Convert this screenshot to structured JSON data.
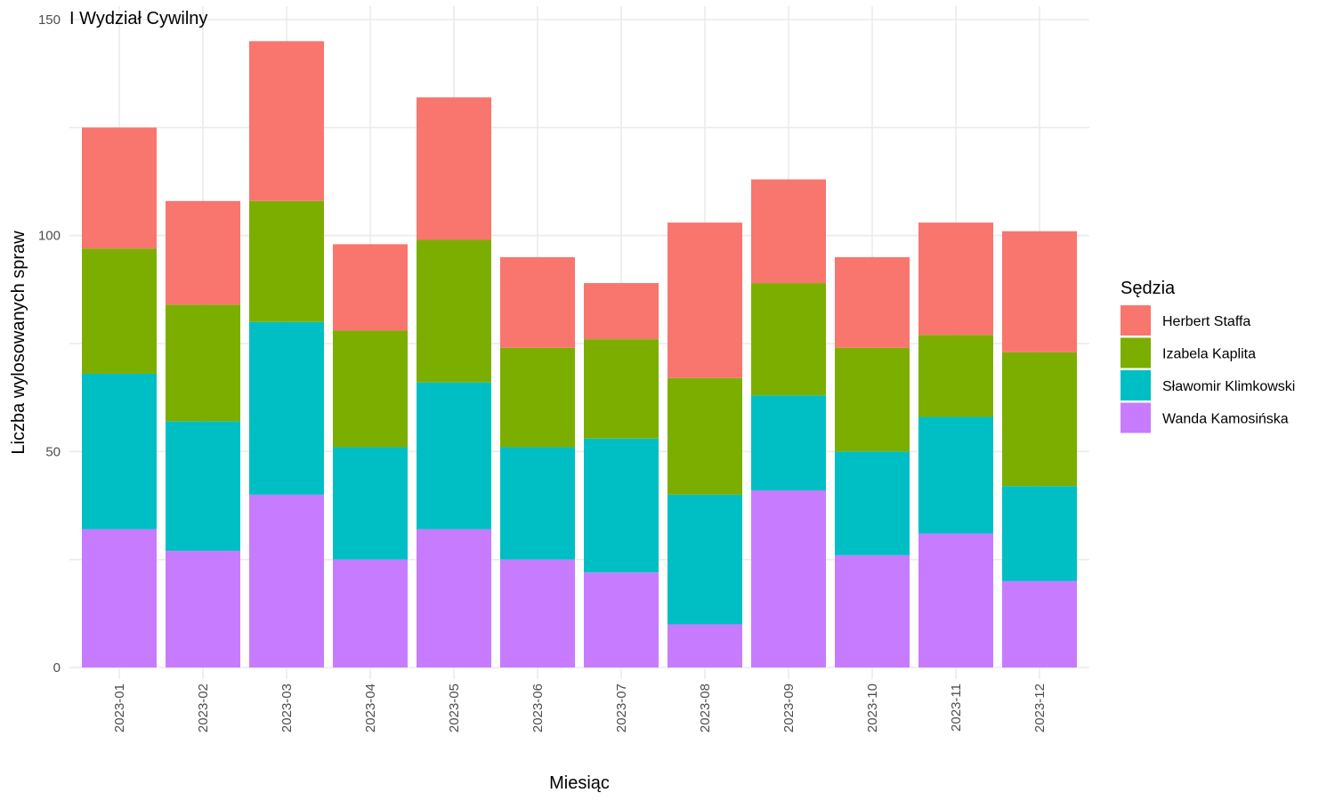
{
  "chart_data": {
    "type": "bar",
    "stacked": true,
    "title": "I Wydział Cywilny",
    "xlabel": "Miesiąc",
    "ylabel": "Liczba wylosowanych spraw",
    "ylim": [
      0,
      150
    ],
    "yticks": [
      0,
      50,
      100,
      150
    ],
    "grid": true,
    "legend_title": "Sędzia",
    "legend_position": "right",
    "categories": [
      "2023-01",
      "2023-02",
      "2023-03",
      "2023-04",
      "2023-05",
      "2023-06",
      "2023-07",
      "2023-08",
      "2023-09",
      "2023-10",
      "2023-11",
      "2023-12"
    ],
    "series": [
      {
        "name": "Wanda Kamosińska",
        "color": "#C77CFF",
        "values": [
          32,
          27,
          40,
          25,
          32,
          25,
          22,
          10,
          41,
          26,
          31,
          20
        ]
      },
      {
        "name": "Sławomir Klimkowski",
        "color": "#00BFC4",
        "values": [
          36,
          30,
          40,
          26,
          34,
          26,
          31,
          30,
          22,
          24,
          27,
          22
        ]
      },
      {
        "name": "Izabela Kaplita",
        "color": "#7CAE00",
        "values": [
          29,
          27,
          28,
          27,
          33,
          23,
          23,
          27,
          26,
          24,
          19,
          31
        ]
      },
      {
        "name": "Herbert Staffa",
        "color": "#F8766D",
        "values": [
          28,
          24,
          37,
          20,
          33,
          21,
          13,
          36,
          24,
          21,
          26,
          28
        ]
      }
    ],
    "legend_order": [
      "Herbert Staffa",
      "Izabela Kaplita",
      "Sławomir Klimkowski",
      "Wanda Kamosińska"
    ]
  }
}
